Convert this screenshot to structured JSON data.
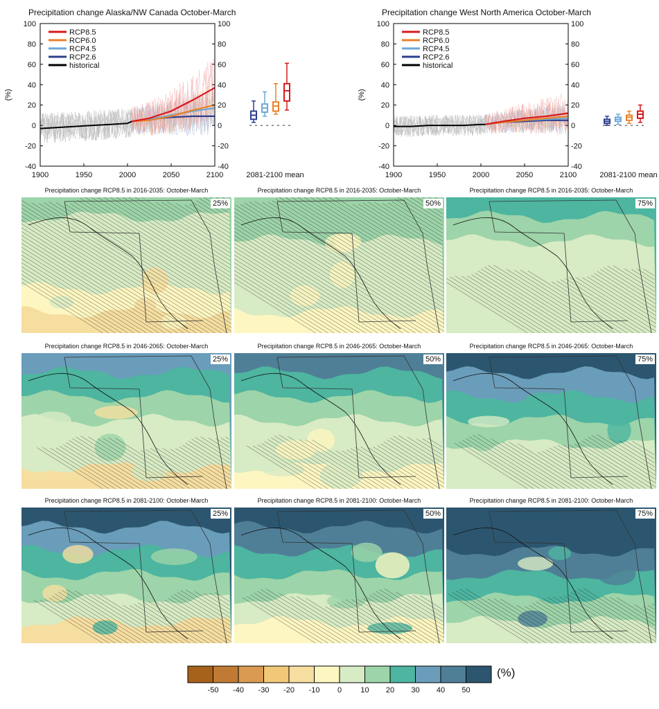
{
  "chart_data": [
    {
      "type": "line",
      "title": "Precipitation change Alaska/NW Canada October-March",
      "ylabel": "(%)",
      "xlim": [
        1900,
        2100
      ],
      "ylim": [
        -40,
        100
      ],
      "xticks": [
        "1900",
        "1950",
        "2000",
        "2050",
        "2100"
      ],
      "yticks": [
        "-40",
        "-20",
        "0",
        "20",
        "40",
        "60",
        "80",
        "100"
      ],
      "legend": [
        "RCP8.5",
        "RCP6.0",
        "RCP4.5",
        "RCP2.6",
        "historical"
      ],
      "series": [
        {
          "name": "historical",
          "x": [
            1900,
            1920,
            1940,
            1960,
            1980,
            2000,
            2005
          ],
          "values": [
            -3,
            -2,
            -1,
            0,
            1,
            2,
            4
          ]
        },
        {
          "name": "RCP2.6",
          "x": [
            2005,
            2025,
            2050,
            2075,
            2100
          ],
          "values": [
            4,
            6,
            8,
            9,
            9
          ]
        },
        {
          "name": "RCP4.5",
          "x": [
            2005,
            2025,
            2050,
            2075,
            2100
          ],
          "values": [
            4,
            6,
            10,
            14,
            17
          ]
        },
        {
          "name": "RCP6.0",
          "x": [
            2005,
            2025,
            2050,
            2075,
            2100
          ],
          "values": [
            4,
            5,
            9,
            15,
            20
          ]
        },
        {
          "name": "RCP8.5",
          "x": [
            2005,
            2025,
            2050,
            2075,
            2100
          ],
          "values": [
            4,
            7,
            14,
            25,
            37
          ]
        }
      ],
      "boxplot": {
        "label": "2081-2100 mean",
        "boxes": [
          {
            "name": "RCP2.6",
            "min": 3,
            "q1": 6,
            "median": 10,
            "q3": 14,
            "max": 24
          },
          {
            "name": "RCP4.5",
            "min": 9,
            "q1": 13,
            "median": 17,
            "q3": 21,
            "max": 33
          },
          {
            "name": "RCP6.0",
            "min": 11,
            "q1": 14,
            "median": 19,
            "q3": 23,
            "max": 41
          },
          {
            "name": "RCP8.5",
            "min": 15,
            "q1": 24,
            "median": 34,
            "q3": 41,
            "max": 61
          }
        ]
      }
    },
    {
      "type": "line",
      "title": "Precipitation change West North America October-March",
      "ylabel": "(%)",
      "xlim": [
        1900,
        2100
      ],
      "ylim": [
        -40,
        100
      ],
      "xticks": [
        "1900",
        "1950",
        "2000",
        "2050",
        "2100"
      ],
      "yticks": [
        "-40",
        "-20",
        "0",
        "20",
        "40",
        "60",
        "80",
        "100"
      ],
      "legend": [
        "RCP8.5",
        "RCP6.0",
        "RCP4.5",
        "RCP2.6",
        "historical"
      ],
      "series": [
        {
          "name": "historical",
          "x": [
            1900,
            1920,
            1940,
            1960,
            1980,
            2000,
            2005
          ],
          "values": [
            -1,
            -1,
            0,
            0,
            0,
            1,
            1
          ]
        },
        {
          "name": "RCP2.6",
          "x": [
            2005,
            2025,
            2050,
            2075,
            2100
          ],
          "values": [
            1,
            3,
            4,
            5,
            5
          ]
        },
        {
          "name": "RCP4.5",
          "x": [
            2005,
            2025,
            2050,
            2075,
            2100
          ],
          "values": [
            1,
            3,
            5,
            6,
            7
          ]
        },
        {
          "name": "RCP6.0",
          "x": [
            2005,
            2025,
            2050,
            2075,
            2100
          ],
          "values": [
            1,
            3,
            5,
            7,
            9
          ]
        },
        {
          "name": "RCP8.5",
          "x": [
            2005,
            2025,
            2050,
            2075,
            2100
          ],
          "values": [
            1,
            4,
            7,
            9,
            12
          ]
        }
      ],
      "boxplot": {
        "label": "2081-2100 mean",
        "boxes": [
          {
            "name": "RCP2.6",
            "min": 0,
            "q1": 2,
            "median": 4,
            "q3": 6,
            "max": 9
          },
          {
            "name": "RCP4.5",
            "min": 1,
            "q1": 4,
            "median": 6,
            "q3": 8,
            "max": 11
          },
          {
            "name": "RCP6.0",
            "min": 2,
            "q1": 5,
            "median": 8,
            "q3": 10,
            "max": 14
          },
          {
            "name": "RCP8.5",
            "min": 3,
            "q1": 7,
            "median": 11,
            "q3": 14,
            "max": 20
          }
        ]
      }
    }
  ],
  "series_colors": {
    "RCP8.5": "#d7191c",
    "RCP6.0": "#e8822a",
    "RCP4.5": "#6ea8d6",
    "RCP2.6": "#2c3f8e",
    "historical": "#000000"
  },
  "maps": {
    "rows": [
      {
        "title": "Precipitation change RCP8.5 in 2016-2035: October-March",
        "percentiles": [
          "25%",
          "50%",
          "75%"
        ]
      },
      {
        "title": "Precipitation change RCP8.5 in 2046-2065: October-March",
        "percentiles": [
          "25%",
          "50%",
          "75%"
        ]
      },
      {
        "title": "Precipitation change RCP8.5 in 2081-2100: October-March",
        "percentiles": [
          "25%",
          "50%",
          "75%"
        ]
      }
    ]
  },
  "colorbar": {
    "unit": "(%)",
    "labels": [
      "-50",
      "-40",
      "-30",
      "-20",
      "-10",
      "0",
      "10",
      "20",
      "30",
      "40",
      "50"
    ],
    "colors": [
      "#a6611a",
      "#c17a34",
      "#d99a52",
      "#f0c878",
      "#f6dea0",
      "#fdf6c1",
      "#d7ebc4",
      "#9dd4a9",
      "#4db5a0",
      "#6a9dba",
      "#4f7f96",
      "#2c5670"
    ]
  }
}
